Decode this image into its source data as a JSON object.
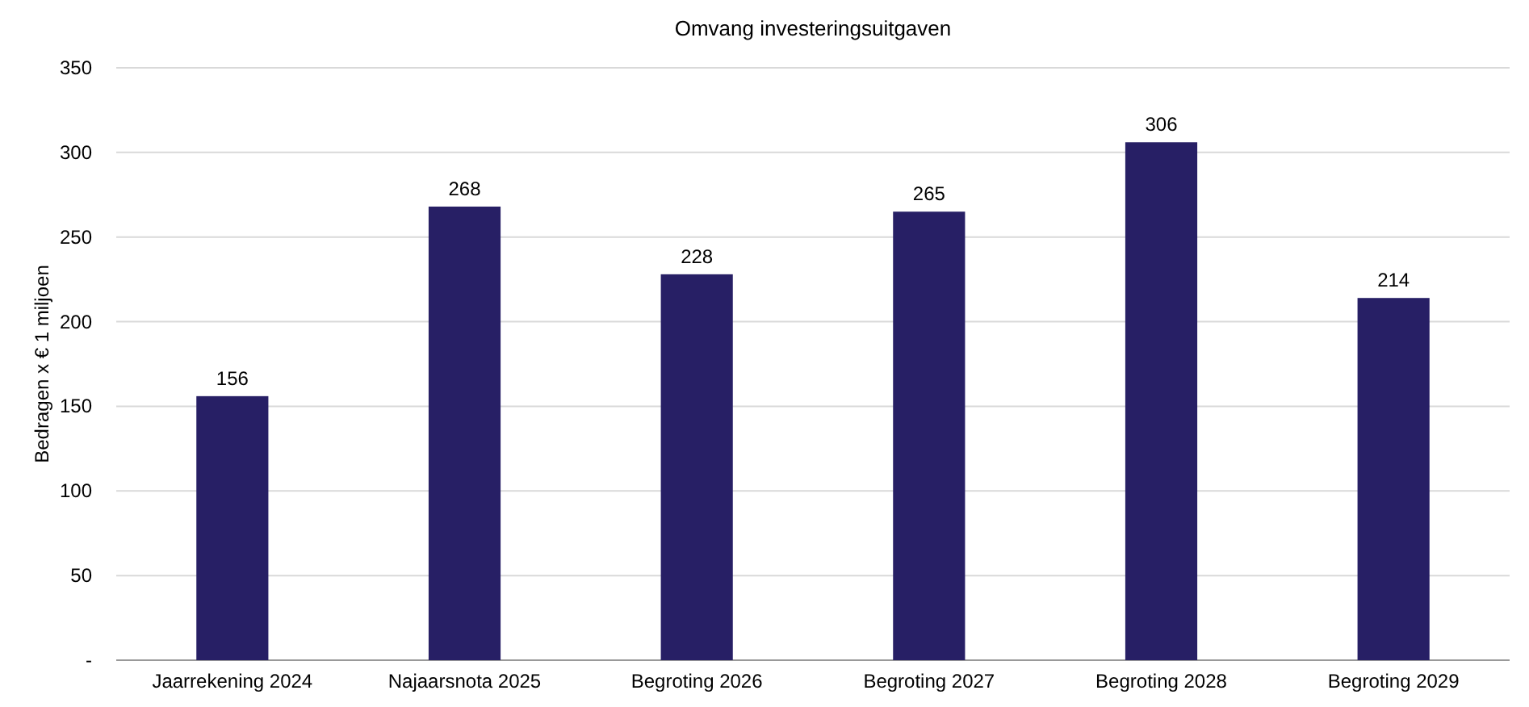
{
  "chart_data": {
    "type": "bar",
    "title": "Omvang investeringsuitgaven",
    "ylabel": "Bedragen x € 1 miljoen",
    "categories": [
      "Jaarrekening 2024",
      "Najaarsnota 2025",
      "Begroting 2026",
      "Begroting 2027",
      "Begroting 2028",
      "Begroting 2029"
    ],
    "values": [
      156,
      268,
      228,
      265,
      306,
      214
    ],
    "color": "#271f65",
    "ylim": [
      0,
      350
    ],
    "yticks": [
      {
        "value": 0,
        "label": "-"
      },
      50,
      100,
      150,
      200,
      250,
      300,
      350
    ],
    "grid": "y",
    "data_labels": true
  }
}
